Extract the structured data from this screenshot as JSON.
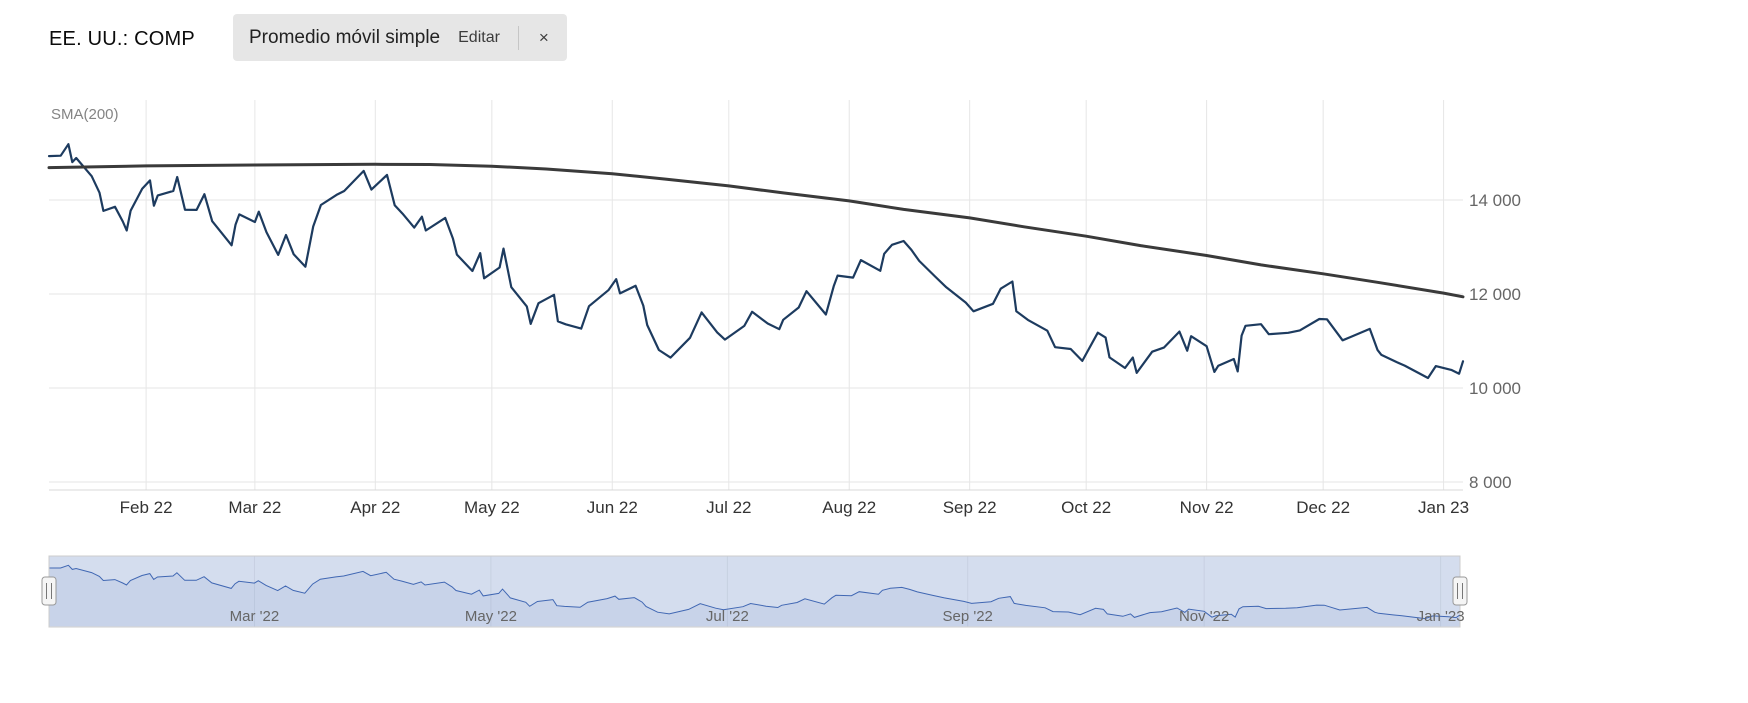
{
  "header": {
    "symbol": "EE. UU.: COMP",
    "indicator": {
      "label": "Promedio móvil simple",
      "edit_label": "Editar",
      "close_label": "×"
    }
  },
  "chart": {
    "sma_label": "SMA(200)",
    "colors": {
      "grid": "#e6e6e6",
      "axis_line": "#d8d8d8",
      "x_label": "#333333",
      "y_label": "#666666",
      "nav_label": "#666666",
      "nav_outline": "#cccccc",
      "nav_mask": "rgba(102,133,194,0.28)",
      "nav_line": "#335cad",
      "nav_fill": "rgba(51,92,173,0.08)",
      "handle_fill": "#f5f5f5",
      "handle_stroke": "#999999",
      "handle_grip": "#777777"
    }
  },
  "chart_data": {
    "type": "line",
    "title": "",
    "xlabel": "",
    "ylabel": "",
    "x_range": [
      "2022-01-07",
      "2023-01-06"
    ],
    "ylim": [
      7830,
      16130
    ],
    "grid": true,
    "legend": false,
    "y_ticks": [
      {
        "value": 14000,
        "label": "14 000"
      },
      {
        "value": 12000,
        "label": "12 000"
      },
      {
        "value": 10000,
        "label": "10 000"
      },
      {
        "value": 8000,
        "label": "8 000"
      }
    ],
    "x_ticks": [
      {
        "date": "2022-02-01",
        "label": "Feb 22"
      },
      {
        "date": "2022-03-01",
        "label": "Mar 22"
      },
      {
        "date": "2022-04-01",
        "label": "Apr 22"
      },
      {
        "date": "2022-05-01",
        "label": "May 22"
      },
      {
        "date": "2022-06-01",
        "label": "Jun 22"
      },
      {
        "date": "2022-07-01",
        "label": "Jul 22"
      },
      {
        "date": "2022-08-01",
        "label": "Aug 22"
      },
      {
        "date": "2022-09-01",
        "label": "Sep 22"
      },
      {
        "date": "2022-10-01",
        "label": "Oct 22"
      },
      {
        "date": "2022-11-01",
        "label": "Nov 22"
      },
      {
        "date": "2022-12-01",
        "label": "Dec 22"
      },
      {
        "date": "2023-01-01",
        "label": "Jan 23"
      }
    ],
    "navigator_ticks": [
      {
        "date": "2022-03-01",
        "label": "Mar '22"
      },
      {
        "date": "2022-05-01",
        "label": "May '22"
      },
      {
        "date": "2022-07-01",
        "label": "Jul '22"
      },
      {
        "date": "2022-09-01",
        "label": "Sep '22"
      },
      {
        "date": "2022-11-01",
        "label": "Nov '22"
      },
      {
        "date": "2023-01-01",
        "label": "Jan '23"
      }
    ],
    "series": [
      {
        "name": "COMP",
        "color": "#1d3b5f",
        "width": 2.2,
        "points": [
          [
            "2022-01-07",
            14935
          ],
          [
            "2022-01-10",
            14943
          ],
          [
            "2022-01-12",
            15188
          ],
          [
            "2022-01-13",
            14806
          ],
          [
            "2022-01-14",
            14894
          ],
          [
            "2022-01-18",
            14507
          ],
          [
            "2022-01-20",
            14155
          ],
          [
            "2022-01-21",
            13769
          ],
          [
            "2022-01-24",
            13855
          ],
          [
            "2022-01-26",
            13542
          ],
          [
            "2022-01-27",
            13352
          ],
          [
            "2022-01-28",
            13771
          ],
          [
            "2022-01-31",
            14240
          ],
          [
            "2022-02-02",
            14418
          ],
          [
            "2022-02-03",
            13878
          ],
          [
            "2022-02-04",
            14098
          ],
          [
            "2022-02-08",
            14194
          ],
          [
            "2022-02-09",
            14490
          ],
          [
            "2022-02-11",
            13791
          ],
          [
            "2022-02-14",
            13790
          ],
          [
            "2022-02-16",
            14124
          ],
          [
            "2022-02-18",
            13548
          ],
          [
            "2022-02-23",
            13037
          ],
          [
            "2022-02-24",
            13473
          ],
          [
            "2022-02-25",
            13694
          ],
          [
            "2022-03-01",
            13532
          ],
          [
            "2022-03-02",
            13752
          ],
          [
            "2022-03-04",
            13313
          ],
          [
            "2022-03-07",
            12831
          ],
          [
            "2022-03-09",
            13255
          ],
          [
            "2022-03-11",
            12844
          ],
          [
            "2022-03-14",
            12581
          ],
          [
            "2022-03-16",
            13436
          ],
          [
            "2022-03-18",
            13894
          ],
          [
            "2022-03-22",
            14108
          ],
          [
            "2022-03-24",
            14191
          ],
          [
            "2022-03-29",
            14620
          ],
          [
            "2022-03-31",
            14221
          ],
          [
            "2022-04-04",
            14533
          ],
          [
            "2022-04-06",
            13889
          ],
          [
            "2022-04-08",
            13711
          ],
          [
            "2022-04-11",
            13412
          ],
          [
            "2022-04-13",
            13644
          ],
          [
            "2022-04-14",
            13351
          ],
          [
            "2022-04-19",
            13620
          ],
          [
            "2022-04-21",
            13175
          ],
          [
            "2022-04-22",
            12839
          ],
          [
            "2022-04-26",
            12490
          ],
          [
            "2022-04-28",
            12871
          ],
          [
            "2022-04-29",
            12335
          ],
          [
            "2022-05-03",
            12564
          ],
          [
            "2022-05-04",
            12965
          ],
          [
            "2022-05-06",
            12145
          ],
          [
            "2022-05-10",
            11737
          ],
          [
            "2022-05-11",
            11364
          ],
          [
            "2022-05-13",
            11805
          ],
          [
            "2022-05-17",
            11984
          ],
          [
            "2022-05-18",
            11418
          ],
          [
            "2022-05-20",
            11355
          ],
          [
            "2022-05-24",
            11264
          ],
          [
            "2022-05-26",
            11741
          ],
          [
            "2022-05-31",
            12081
          ],
          [
            "2022-06-02",
            12317
          ],
          [
            "2022-06-03",
            12013
          ],
          [
            "2022-06-07",
            12175
          ],
          [
            "2022-06-09",
            11754
          ],
          [
            "2022-06-10",
            11340
          ],
          [
            "2022-06-13",
            10809
          ],
          [
            "2022-06-16",
            10646
          ],
          [
            "2022-06-21",
            11069
          ],
          [
            "2022-06-24",
            11608
          ],
          [
            "2022-06-28",
            11182
          ],
          [
            "2022-06-30",
            11029
          ],
          [
            "2022-07-05",
            11322
          ],
          [
            "2022-07-07",
            11621
          ],
          [
            "2022-07-11",
            11373
          ],
          [
            "2022-07-14",
            11251
          ],
          [
            "2022-07-15",
            11452
          ],
          [
            "2022-07-19",
            11713
          ],
          [
            "2022-07-21",
            12060
          ],
          [
            "2022-07-26",
            11563
          ],
          [
            "2022-07-28",
            12163
          ],
          [
            "2022-07-29",
            12391
          ],
          [
            "2022-08-02",
            12348
          ],
          [
            "2022-08-04",
            12721
          ],
          [
            "2022-08-09",
            12494
          ],
          [
            "2022-08-10",
            12855
          ],
          [
            "2022-08-12",
            13047
          ],
          [
            "2022-08-15",
            13128
          ],
          [
            "2022-08-17",
            12938
          ],
          [
            "2022-08-19",
            12705
          ],
          [
            "2022-08-23",
            12381
          ],
          [
            "2022-08-26",
            12142
          ],
          [
            "2022-08-31",
            11816
          ],
          [
            "2022-09-02",
            11631
          ],
          [
            "2022-09-07",
            11792
          ],
          [
            "2022-09-09",
            12112
          ],
          [
            "2022-09-12",
            12266
          ],
          [
            "2022-09-13",
            11633
          ],
          [
            "2022-09-16",
            11448
          ],
          [
            "2022-09-21",
            11220
          ],
          [
            "2022-09-23",
            10868
          ],
          [
            "2022-09-27",
            10830
          ],
          [
            "2022-09-30",
            10576
          ],
          [
            "2022-10-04",
            11176
          ],
          [
            "2022-10-06",
            11073
          ],
          [
            "2022-10-07",
            10652
          ],
          [
            "2022-10-11",
            10426
          ],
          [
            "2022-10-13",
            10649
          ],
          [
            "2022-10-14",
            10321
          ],
          [
            "2022-10-18",
            10772
          ],
          [
            "2022-10-21",
            10860
          ],
          [
            "2022-10-25",
            11199
          ],
          [
            "2022-10-27",
            10793
          ],
          [
            "2022-10-28",
            11102
          ],
          [
            "2022-11-01",
            10890
          ],
          [
            "2022-11-03",
            10343
          ],
          [
            "2022-11-04",
            10475
          ],
          [
            "2022-11-08",
            10616
          ],
          [
            "2022-11-09",
            10353
          ],
          [
            "2022-11-10",
            11114
          ],
          [
            "2022-11-11",
            11323
          ],
          [
            "2022-11-15",
            11358
          ],
          [
            "2022-11-17",
            11145
          ],
          [
            "2022-11-22",
            11174
          ],
          [
            "2022-11-25",
            11226
          ],
          [
            "2022-11-30",
            11468
          ],
          [
            "2022-12-02",
            11461
          ],
          [
            "2022-12-06",
            11014
          ],
          [
            "2022-12-08",
            11082
          ],
          [
            "2022-12-13",
            11257
          ],
          [
            "2022-12-15",
            10810
          ],
          [
            "2022-12-16",
            10705
          ],
          [
            "2022-12-20",
            10547
          ],
          [
            "2022-12-22",
            10476
          ],
          [
            "2022-12-28",
            10213
          ],
          [
            "2022-12-30",
            10466
          ],
          [
            "2023-01-03",
            10386
          ],
          [
            "2023-01-05",
            10305
          ],
          [
            "2023-01-06",
            10569
          ]
        ]
      },
      {
        "name": "SMA(200)",
        "color": "#3a3a3a",
        "width": 3,
        "points": [
          [
            "2022-01-07",
            14690
          ],
          [
            "2022-02-01",
            14725
          ],
          [
            "2022-03-01",
            14745
          ],
          [
            "2022-04-01",
            14760
          ],
          [
            "2022-04-15",
            14755
          ],
          [
            "2022-05-01",
            14720
          ],
          [
            "2022-05-15",
            14660
          ],
          [
            "2022-06-01",
            14560
          ],
          [
            "2022-06-15",
            14440
          ],
          [
            "2022-07-01",
            14300
          ],
          [
            "2022-07-15",
            14150
          ],
          [
            "2022-08-01",
            13980
          ],
          [
            "2022-08-15",
            13800
          ],
          [
            "2022-09-01",
            13620
          ],
          [
            "2022-09-15",
            13430
          ],
          [
            "2022-10-01",
            13230
          ],
          [
            "2022-10-15",
            13030
          ],
          [
            "2022-11-01",
            12820
          ],
          [
            "2022-11-15",
            12620
          ],
          [
            "2022-12-01",
            12430
          ],
          [
            "2022-12-15",
            12250
          ],
          [
            "2023-01-01",
            12020
          ],
          [
            "2023-01-06",
            11940
          ]
        ]
      }
    ]
  }
}
